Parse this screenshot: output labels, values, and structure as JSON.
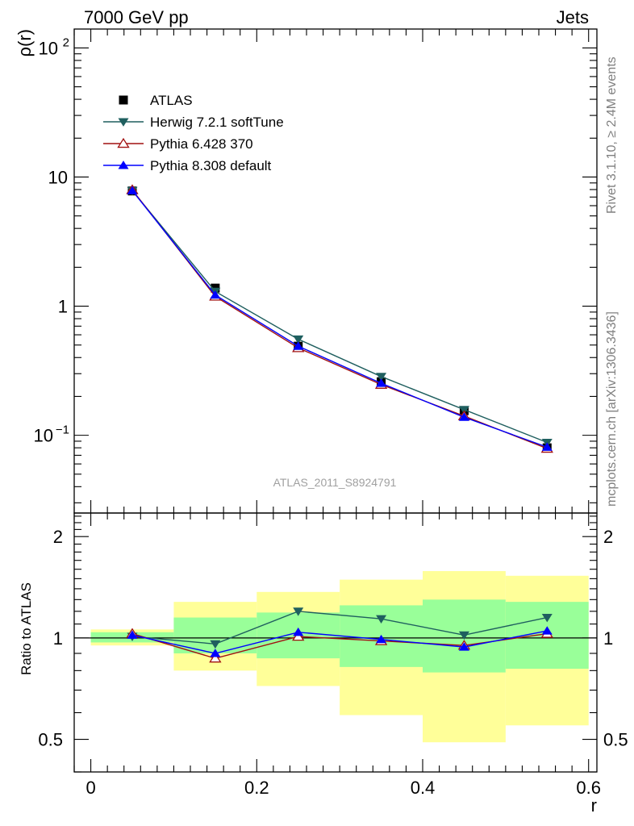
{
  "header": {
    "left": "7000 GeV pp",
    "right": "Jets"
  },
  "side_labels": {
    "rivet": "Rivet 3.1.10, ≥ 2.4M events",
    "mcplots": "mcplots.cern.ch [arXiv:1306.3436]"
  },
  "watermark": "ATLAS_2011_S8924791",
  "colors": {
    "atlas": "#000000",
    "herwig": "#1f5f5f",
    "pythia6": "#a01010",
    "pythia8": "#0000ff",
    "band_outer": "#ffff99",
    "band_inner": "#99ff99"
  },
  "chart_data": [
    {
      "type": "line",
      "name": "main",
      "xlabel": "",
      "ylabel": "ρ(r)",
      "xlim": [
        -0.02,
        0.61
      ],
      "ylim": [
        0.025,
        140
      ],
      "yscale": "log",
      "legend_position": "top-left",
      "y_tick_labels": [
        {
          "value": 0.1,
          "base": "10",
          "exp": "−1"
        },
        {
          "value": 1,
          "base": "1",
          "exp": ""
        },
        {
          "value": 10,
          "base": "10",
          "exp": ""
        },
        {
          "value": 100,
          "base": "10",
          "exp": "2"
        }
      ],
      "x": [
        0.05,
        0.15,
        0.25,
        0.35,
        0.45,
        0.55
      ],
      "series": [
        {
          "name": "ATLAS",
          "marker": "square",
          "values": [
            7.8,
            1.38,
            0.49,
            0.26,
            0.155,
            0.08
          ]
        },
        {
          "name": "Herwig 7.2.1 softTune",
          "marker": "triangle-down",
          "values": [
            7.85,
            1.3,
            0.555,
            0.285,
            0.158,
            0.088
          ]
        },
        {
          "name": "Pythia 6.428 370",
          "marker": "triangle-up-open",
          "values": [
            7.95,
            1.19,
            0.475,
            0.247,
            0.141,
            0.079
          ]
        },
        {
          "name": "Pythia 8.308 default",
          "marker": "triangle-up",
          "values": [
            7.85,
            1.22,
            0.49,
            0.253,
            0.138,
            0.081
          ]
        }
      ]
    },
    {
      "type": "line",
      "name": "ratio",
      "xlabel": "r",
      "ylabel": "Ratio to ATLAS",
      "xlim": [
        -0.02,
        0.61
      ],
      "ylim": [
        0.4,
        2.35
      ],
      "yscale": "log",
      "x_tick_labels": [
        "0",
        "0.2",
        "0.4",
        "0.6"
      ],
      "y_tick_labels": [
        "0.5",
        "1",
        "2"
      ],
      "x": [
        0.05,
        0.15,
        0.25,
        0.35,
        0.45,
        0.55
      ],
      "bands": [
        {
          "x0": 0.0,
          "x1": 0.1,
          "outer": [
            0.95,
            1.06
          ],
          "inner": [
            0.97,
            1.04
          ]
        },
        {
          "x0": 0.1,
          "x1": 0.2,
          "outer": [
            0.8,
            1.28
          ],
          "inner": [
            0.9,
            1.15
          ]
        },
        {
          "x0": 0.2,
          "x1": 0.3,
          "outer": [
            0.72,
            1.37
          ],
          "inner": [
            0.87,
            1.19
          ]
        },
        {
          "x0": 0.3,
          "x1": 0.4,
          "outer": [
            0.59,
            1.49
          ],
          "inner": [
            0.82,
            1.25
          ]
        },
        {
          "x0": 0.4,
          "x1": 0.5,
          "outer": [
            0.49,
            1.58
          ],
          "inner": [
            0.79,
            1.3
          ]
        },
        {
          "x0": 0.5,
          "x1": 0.6,
          "outer": [
            0.55,
            1.53
          ],
          "inner": [
            0.81,
            1.28
          ]
        }
      ],
      "series": [
        {
          "name": "Herwig 7.2.1 softTune",
          "marker": "triangle-down",
          "values": [
            1.01,
            0.96,
            1.2,
            1.14,
            1.02,
            1.15
          ]
        },
        {
          "name": "Pythia 6.428 370",
          "marker": "triangle-up-open",
          "values": [
            1.03,
            0.87,
            1.01,
            0.98,
            0.95,
            1.03
          ]
        },
        {
          "name": "Pythia 8.308 default",
          "marker": "triangle-up",
          "values": [
            1.02,
            0.9,
            1.04,
            0.99,
            0.94,
            1.05
          ]
        }
      ]
    }
  ]
}
